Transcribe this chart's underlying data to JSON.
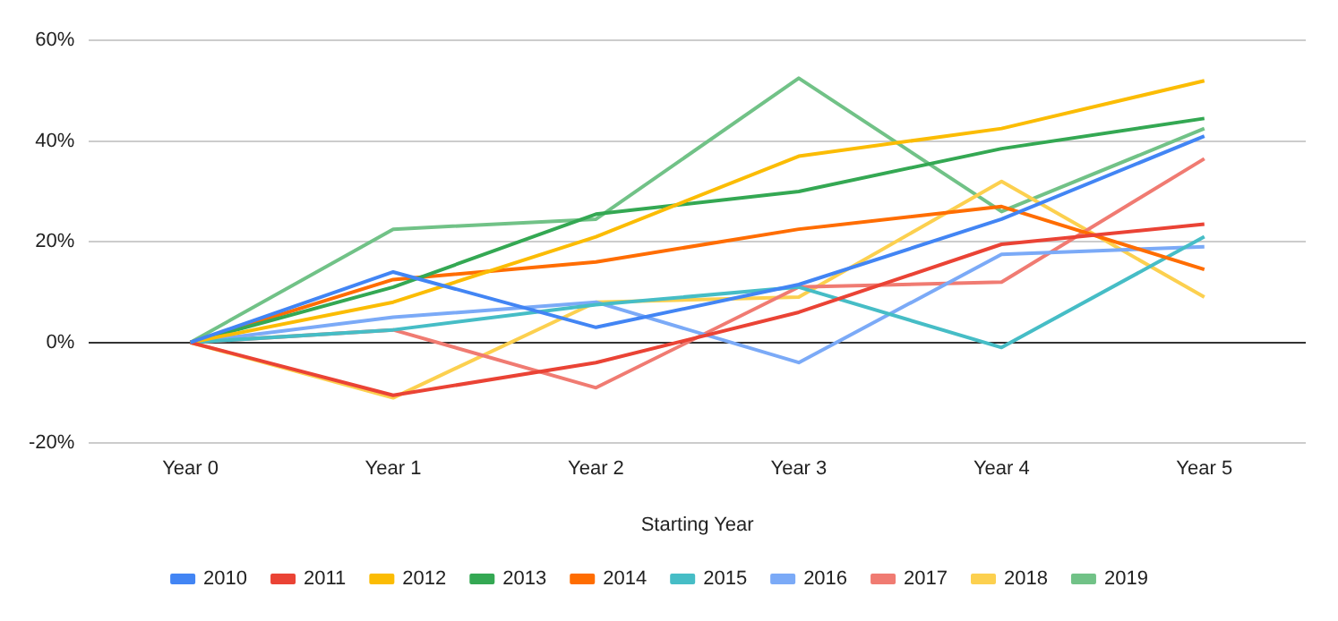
{
  "chart_data": {
    "type": "line",
    "xlabel": "Starting Year",
    "categories": [
      "Year 0",
      "Year 1",
      "Year 2",
      "Year 3",
      "Year 4",
      "Year 5"
    ],
    "ylim": [
      -20,
      60
    ],
    "yticks": [
      {
        "value": -20,
        "label": "-20%"
      },
      {
        "value": 0,
        "label": "0%"
      },
      {
        "value": 20,
        "label": "20%"
      },
      {
        "value": 40,
        "label": "40%"
      },
      {
        "value": 60,
        "label": "60%"
      }
    ],
    "grid": "y",
    "legend": "bottom",
    "marker": "none",
    "line_style": "solid",
    "series": [
      {
        "name": "2010",
        "color": "#4285f4",
        "values": [
          0,
          14,
          3,
          11.5,
          24.5,
          41
        ]
      },
      {
        "name": "2011",
        "color": "#ea4335",
        "values": [
          0,
          -10.5,
          -4,
          6,
          19.5,
          23.5
        ]
      },
      {
        "name": "2012",
        "color": "#fbbc04",
        "values": [
          0,
          8,
          21,
          37,
          42.5,
          52
        ]
      },
      {
        "name": "2013",
        "color": "#34a853",
        "values": [
          0,
          11,
          25.5,
          30,
          38.5,
          44.5
        ]
      },
      {
        "name": "2014",
        "color": "#ff6d01",
        "values": [
          0,
          12.5,
          16,
          22.5,
          27,
          14.5
        ]
      },
      {
        "name": "2015",
        "color": "#46bdc6",
        "values": [
          0,
          2.5,
          7.5,
          11,
          -1,
          21
        ]
      },
      {
        "name": "2016",
        "color": "#7baaf7",
        "values": [
          0,
          5,
          8,
          -4,
          17.5,
          19
        ]
      },
      {
        "name": "2017",
        "color": "#f07b72",
        "values": [
          0,
          2.5,
          -9,
          11,
          12,
          36.5
        ]
      },
      {
        "name": "2018",
        "color": "#fcd04f",
        "values": [
          0,
          -11,
          8,
          9,
          32,
          9
        ]
      },
      {
        "name": "2019",
        "color": "#71c287",
        "values": [
          0,
          22.5,
          24.5,
          52.5,
          26,
          42.5
        ]
      }
    ]
  }
}
